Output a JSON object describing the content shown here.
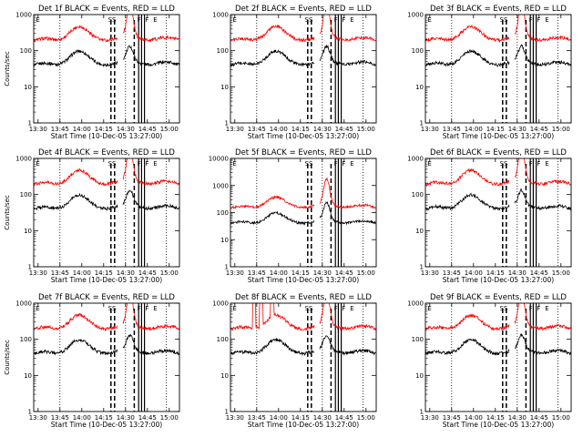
{
  "chart_data": [
    {
      "type": "line",
      "title": "Det 1f BLACK = Events, RED = LLD",
      "xlabel": "Start Time (10-Dec-05 13:27:00)",
      "ylabel": "Counts/sec",
      "x_ticks": [
        "13:30",
        "13:45",
        "14:00",
        "14:15",
        "14:30",
        "14:45",
        "15:00"
      ],
      "y_ticks": [
        "1",
        "10",
        "100",
        "1000"
      ],
      "ylim": [
        1,
        1000
      ],
      "yscale": "log",
      "markers": [
        "E",
        "SS",
        "F",
        "F",
        "E"
      ],
      "series": [
        {
          "color": "#000000"
        },
        {
          "color": "#ff0000"
        }
      ]
    },
    {
      "type": "line",
      "title": "Det 2f BLACK = Events, RED = LLD",
      "xlabel": "Start Time (10-Dec-05 13:27:00)",
      "ylabel": "",
      "x_ticks": [
        "13:30",
        "13:45",
        "14:00",
        "14:15",
        "14:30",
        "14:45",
        "15:00"
      ],
      "y_ticks": [
        "1",
        "10",
        "100",
        "1000"
      ],
      "ylim": [
        1,
        1000
      ],
      "yscale": "log",
      "markers": [
        "E",
        "SS",
        "F",
        "F",
        "E"
      ],
      "series": [
        {
          "color": "#000000"
        },
        {
          "color": "#ff0000"
        }
      ]
    },
    {
      "type": "line",
      "title": "Det 3f BLACK = Events, RED = LLD",
      "xlabel": "Start Time (10-Dec-05 13:27:00)",
      "ylabel": "",
      "x_ticks": [
        "13:30",
        "13:45",
        "14:00",
        "14:15",
        "14:30",
        "14:45",
        "15:00"
      ],
      "y_ticks": [
        "1",
        "10",
        "100",
        "1000"
      ],
      "ylim": [
        1,
        1000
      ],
      "yscale": "log",
      "markers": [
        "E",
        "SS",
        "F",
        "F",
        "E"
      ],
      "series": [
        {
          "color": "#000000"
        },
        {
          "color": "#ff0000"
        }
      ]
    },
    {
      "type": "line",
      "title": "Det 4f BLACK = Events, RED = LLD",
      "xlabel": "Start Time (10-Dec-05 13:27:00)",
      "ylabel": "Counts/sec",
      "x_ticks": [
        "13:30",
        "13:45",
        "14:00",
        "14:15",
        "14:30",
        "14:45",
        "15:00"
      ],
      "y_ticks": [
        "1",
        "10",
        "100",
        "1000"
      ],
      "ylim": [
        1,
        1000
      ],
      "yscale": "log",
      "markers": [
        "E",
        "SS",
        "F",
        "F",
        "E"
      ],
      "series": [
        {
          "color": "#000000"
        },
        {
          "color": "#ff0000"
        }
      ]
    },
    {
      "type": "line",
      "title": "Det 5f BLACK = Events, RED = LLD",
      "xlabel": "Start Time (10-Dec-05 13:27:00)",
      "ylabel": "",
      "x_ticks": [
        "13:30",
        "13:45",
        "14:00",
        "14:15",
        "14:30",
        "14:45",
        "15:00"
      ],
      "y_ticks": [
        "1",
        "10",
        "100",
        "1000",
        "10000"
      ],
      "ylim": [
        1,
        10000
      ],
      "yscale": "log",
      "markers": [
        "E",
        "SS",
        "F",
        "F",
        "E"
      ],
      "series": [
        {
          "color": "#000000"
        },
        {
          "color": "#ff0000"
        }
      ]
    },
    {
      "type": "line",
      "title": "Det 6f BLACK = Events, RED = LLD",
      "xlabel": "Start Time (10-Dec-05 13:27:00)",
      "ylabel": "",
      "x_ticks": [
        "13:30",
        "13:45",
        "14:00",
        "14:15",
        "14:30",
        "14:45",
        "15:00"
      ],
      "y_ticks": [
        "1",
        "10",
        "100",
        "1000"
      ],
      "ylim": [
        1,
        1000
      ],
      "yscale": "log",
      "markers": [
        "E",
        "SS",
        "F",
        "F",
        "E"
      ],
      "series": [
        {
          "color": "#000000"
        },
        {
          "color": "#ff0000"
        }
      ]
    },
    {
      "type": "line",
      "title": "Det 7f BLACK = Events, RED = LLD",
      "xlabel": "Start Time (10-Dec-05 13:27:00)",
      "ylabel": "Counts/sec",
      "x_ticks": [
        "13:30",
        "13:45",
        "14:00",
        "14:15",
        "14:30",
        "14:45",
        "15:00"
      ],
      "y_ticks": [
        "1",
        "10",
        "100",
        "1000"
      ],
      "ylim": [
        1,
        1000
      ],
      "yscale": "log",
      "markers": [
        "E",
        "SS",
        "F",
        "F",
        "E"
      ],
      "series": [
        {
          "color": "#000000"
        },
        {
          "color": "#ff0000"
        }
      ]
    },
    {
      "type": "line",
      "title": "Det 8f BLACK = Events, RED = LLD",
      "xlabel": "Start Time (10-Dec-05 13:27:00)",
      "ylabel": "",
      "x_ticks": [
        "13:30",
        "13:45",
        "14:00",
        "14:15",
        "14:30",
        "14:45",
        "15:00"
      ],
      "y_ticks": [
        "1",
        "10",
        "100",
        "1000"
      ],
      "ylim": [
        1,
        1000
      ],
      "yscale": "log",
      "markers": [
        "E",
        "SS",
        "F",
        "F",
        "E"
      ],
      "series": [
        {
          "color": "#000000"
        },
        {
          "color": "#ff0000"
        }
      ]
    },
    {
      "type": "line",
      "title": "Det 9f BLACK = Events, RED = LLD",
      "xlabel": "Start Time (10-Dec-05 13:27:00)",
      "ylabel": "",
      "x_ticks": [
        "13:30",
        "13:45",
        "14:00",
        "14:15",
        "14:30",
        "14:45",
        "15:00"
      ],
      "y_ticks": [
        "1",
        "10",
        "100",
        "1000"
      ],
      "ylim": [
        1,
        1000
      ],
      "yscale": "log",
      "markers": [
        "E",
        "SS",
        "F",
        "F",
        "E"
      ],
      "series": [
        {
          "color": "#000000"
        },
        {
          "color": "#ff0000"
        }
      ]
    }
  ]
}
